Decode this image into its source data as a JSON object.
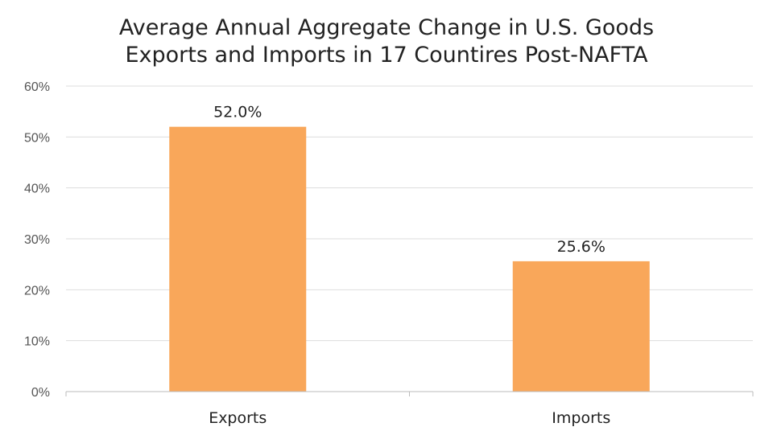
{
  "chart_data": {
    "type": "bar",
    "title_lines": [
      "Average Annual Aggregate Change in U.S. Goods",
      "Exports and Imports in 17 Countires Post-NAFTA"
    ],
    "categories": [
      "Exports",
      "Imports"
    ],
    "values": [
      52.0,
      25.6
    ],
    "data_labels": [
      "52.0%",
      "25.6%"
    ],
    "yticks": [
      "0%",
      "10%",
      "20%",
      "30%",
      "40%",
      "50%",
      "60%"
    ],
    "ylim": [
      0,
      60
    ],
    "grid": true,
    "legend": "none",
    "bar_color": "#F9A75A",
    "grid_color": "#DDDDDD",
    "axis_color": "#BBBBBB"
  }
}
